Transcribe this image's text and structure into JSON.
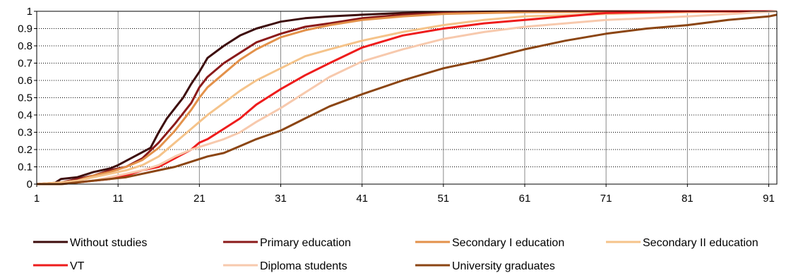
{
  "chart_data": {
    "type": "line",
    "title": "",
    "xlabel": "",
    "ylabel": "",
    "xlim": [
      1,
      92
    ],
    "ylim": [
      0,
      1
    ],
    "x_ticks": [
      1,
      11,
      21,
      31,
      41,
      51,
      61,
      71,
      81,
      91
    ],
    "y_ticks": [
      0,
      0.1,
      0.2,
      0.3,
      0.4,
      0.5,
      0.6,
      0.7,
      0.8,
      0.9,
      1
    ],
    "y_tick_labels": [
      "0",
      "0.1",
      "0.2",
      "0.3",
      "0.4",
      "0.5",
      "0.6",
      "0.7",
      "0.8",
      "0.9",
      "1"
    ],
    "grid": "horizontal dotted, vertical solid",
    "legend_position": "bottom",
    "series": [
      {
        "name": "Without studies",
        "color": "#3d0c0c",
        "points": [
          [
            1,
            0
          ],
          [
            3,
            0
          ],
          [
            4,
            0.03
          ],
          [
            6,
            0.04
          ],
          [
            8,
            0.07
          ],
          [
            10,
            0.09
          ],
          [
            11,
            0.11
          ],
          [
            13,
            0.16
          ],
          [
            15,
            0.21
          ],
          [
            16,
            0.3
          ],
          [
            17,
            0.38
          ],
          [
            18,
            0.44
          ],
          [
            19,
            0.5
          ],
          [
            20,
            0.58
          ],
          [
            21,
            0.65
          ],
          [
            22,
            0.73
          ],
          [
            24,
            0.8
          ],
          [
            26,
            0.86
          ],
          [
            28,
            0.9
          ],
          [
            31,
            0.94
          ],
          [
            34,
            0.96
          ],
          [
            37,
            0.97
          ],
          [
            41,
            0.98
          ],
          [
            46,
            0.99
          ],
          [
            51,
            0.995
          ],
          [
            61,
            1
          ],
          [
            92,
            1
          ]
        ]
      },
      {
        "name": "Primary education",
        "color": "#8b1a1a",
        "points": [
          [
            1,
            0
          ],
          [
            4,
            0.01
          ],
          [
            6,
            0.03
          ],
          [
            8,
            0.05
          ],
          [
            10,
            0.08
          ],
          [
            12,
            0.1
          ],
          [
            14,
            0.15
          ],
          [
            16,
            0.24
          ],
          [
            18,
            0.35
          ],
          [
            20,
            0.47
          ],
          [
            21,
            0.56
          ],
          [
            22,
            0.62
          ],
          [
            24,
            0.7
          ],
          [
            26,
            0.76
          ],
          [
            28,
            0.82
          ],
          [
            31,
            0.87
          ],
          [
            34,
            0.91
          ],
          [
            37,
            0.93
          ],
          [
            41,
            0.96
          ],
          [
            46,
            0.98
          ],
          [
            51,
            0.99
          ],
          [
            61,
            1
          ],
          [
            92,
            1
          ]
        ]
      },
      {
        "name": "Secondary I education",
        "color": "#e3914a",
        "points": [
          [
            1,
            0
          ],
          [
            4,
            0.01
          ],
          [
            6,
            0.02
          ],
          [
            8,
            0.05
          ],
          [
            10,
            0.07
          ],
          [
            12,
            0.1
          ],
          [
            14,
            0.14
          ],
          [
            16,
            0.21
          ],
          [
            18,
            0.31
          ],
          [
            20,
            0.43
          ],
          [
            21,
            0.5
          ],
          [
            22,
            0.56
          ],
          [
            24,
            0.64
          ],
          [
            26,
            0.72
          ],
          [
            28,
            0.78
          ],
          [
            31,
            0.85
          ],
          [
            34,
            0.89
          ],
          [
            37,
            0.92
          ],
          [
            41,
            0.95
          ],
          [
            46,
            0.97
          ],
          [
            51,
            0.985
          ],
          [
            61,
            0.995
          ],
          [
            92,
            1
          ]
        ]
      },
      {
        "name": "Secondary II education",
        "color": "#f5c38a",
        "points": [
          [
            1,
            0
          ],
          [
            4,
            0.01
          ],
          [
            6,
            0.02
          ],
          [
            8,
            0.04
          ],
          [
            10,
            0.06
          ],
          [
            12,
            0.08
          ],
          [
            14,
            0.11
          ],
          [
            16,
            0.16
          ],
          [
            18,
            0.24
          ],
          [
            20,
            0.32
          ],
          [
            21,
            0.36
          ],
          [
            22,
            0.4
          ],
          [
            24,
            0.47
          ],
          [
            26,
            0.54
          ],
          [
            28,
            0.6
          ],
          [
            31,
            0.67
          ],
          [
            34,
            0.74
          ],
          [
            37,
            0.78
          ],
          [
            41,
            0.83
          ],
          [
            46,
            0.88
          ],
          [
            51,
            0.92
          ],
          [
            56,
            0.95
          ],
          [
            61,
            0.97
          ],
          [
            71,
            0.985
          ],
          [
            81,
            0.995
          ],
          [
            92,
            1
          ]
        ]
      },
      {
        "name": "VT",
        "color": "#ee1c1c",
        "points": [
          [
            1,
            0
          ],
          [
            4,
            0
          ],
          [
            6,
            0.01
          ],
          [
            8,
            0.02
          ],
          [
            10,
            0.03
          ],
          [
            12,
            0.05
          ],
          [
            14,
            0.08
          ],
          [
            16,
            0.1
          ],
          [
            18,
            0.15
          ],
          [
            20,
            0.2
          ],
          [
            21,
            0.24
          ],
          [
            22,
            0.26
          ],
          [
            24,
            0.32
          ],
          [
            26,
            0.38
          ],
          [
            28,
            0.46
          ],
          [
            31,
            0.55
          ],
          [
            34,
            0.63
          ],
          [
            37,
            0.7
          ],
          [
            41,
            0.79
          ],
          [
            46,
            0.86
          ],
          [
            51,
            0.9
          ],
          [
            56,
            0.93
          ],
          [
            61,
            0.95
          ],
          [
            66,
            0.97
          ],
          [
            71,
            0.99
          ],
          [
            81,
            1
          ],
          [
            92,
            1
          ]
        ]
      },
      {
        "name": "Diploma students",
        "color": "#f7c9ad",
        "points": [
          [
            1,
            0
          ],
          [
            4,
            0
          ],
          [
            6,
            0.01
          ],
          [
            8,
            0.02
          ],
          [
            10,
            0.04
          ],
          [
            12,
            0.06
          ],
          [
            14,
            0.08
          ],
          [
            16,
            0.11
          ],
          [
            18,
            0.16
          ],
          [
            20,
            0.2
          ],
          [
            22,
            0.23
          ],
          [
            24,
            0.26
          ],
          [
            26,
            0.3
          ],
          [
            28,
            0.36
          ],
          [
            31,
            0.44
          ],
          [
            34,
            0.53
          ],
          [
            37,
            0.62
          ],
          [
            41,
            0.71
          ],
          [
            46,
            0.78
          ],
          [
            51,
            0.84
          ],
          [
            56,
            0.88
          ],
          [
            61,
            0.91
          ],
          [
            66,
            0.93
          ],
          [
            71,
            0.95
          ],
          [
            81,
            0.97
          ],
          [
            92,
            1
          ]
        ]
      },
      {
        "name": "University graduates",
        "color": "#8b4513",
        "points": [
          [
            1,
            0
          ],
          [
            4,
            0
          ],
          [
            6,
            0.01
          ],
          [
            8,
            0.02
          ],
          [
            10,
            0.03
          ],
          [
            12,
            0.04
          ],
          [
            14,
            0.06
          ],
          [
            16,
            0.08
          ],
          [
            18,
            0.1
          ],
          [
            20,
            0.13
          ],
          [
            22,
            0.16
          ],
          [
            24,
            0.18
          ],
          [
            26,
            0.22
          ],
          [
            28,
            0.26
          ],
          [
            31,
            0.31
          ],
          [
            34,
            0.38
          ],
          [
            37,
            0.45
          ],
          [
            41,
            0.52
          ],
          [
            46,
            0.6
          ],
          [
            51,
            0.67
          ],
          [
            56,
            0.72
          ],
          [
            61,
            0.78
          ],
          [
            66,
            0.83
          ],
          [
            71,
            0.87
          ],
          [
            76,
            0.9
          ],
          [
            81,
            0.92
          ],
          [
            86,
            0.95
          ],
          [
            91,
            0.97
          ],
          [
            92,
            0.98
          ]
        ]
      }
    ]
  }
}
